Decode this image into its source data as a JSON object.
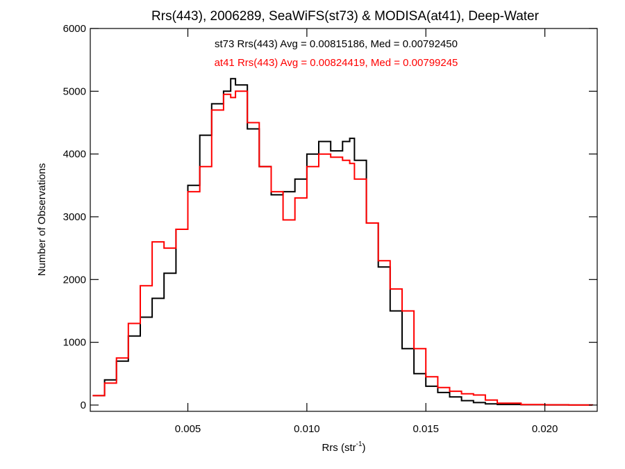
{
  "chart_data": {
    "type": "line",
    "title": "Rrs(443), 2006289, SeaWiFS(st73) & MODISA(at41), Deep-Water",
    "xlabel_main": "Rrs (str",
    "xlabel_sup": "-1",
    "xlabel_close": ")",
    "ylabel": "Number of Observations",
    "xlim": [
      0.0009,
      0.0222
    ],
    "ylim": [
      -100,
      6000
    ],
    "xticks": [
      0.005,
      0.01,
      0.015,
      0.02
    ],
    "xtick_labels": [
      "0.005",
      "0.010",
      "0.015",
      "0.020"
    ],
    "yticks": [
      0,
      1000,
      2000,
      3000,
      4000,
      5000,
      6000
    ],
    "ytick_labels": [
      "0",
      "1000",
      "2000",
      "3000",
      "4000",
      "5000",
      "6000"
    ],
    "grid": false,
    "annotations": [
      {
        "text": "st73 Rrs(443) Avg = 0.00815186, Med = 0.00792450",
        "color": "#000000"
      },
      {
        "text": "at41 Rrs(443) Avg = 0.00824419, Med = 0.00799245",
        "color": "#ff0000"
      }
    ],
    "series": [
      {
        "color": "#000000",
        "x": [
          0.001,
          0.0015,
          0.002,
          0.0025,
          0.003,
          0.0035,
          0.004,
          0.0045,
          0.005,
          0.0055,
          0.006,
          0.0065,
          0.0068,
          0.007,
          0.0075,
          0.008,
          0.0085,
          0.009,
          0.0095,
          0.01,
          0.0105,
          0.011,
          0.0115,
          0.0118,
          0.012,
          0.0125,
          0.013,
          0.0135,
          0.014,
          0.0145,
          0.015,
          0.0155,
          0.016,
          0.0165,
          0.017,
          0.0175,
          0.018,
          0.019,
          0.02,
          0.021,
          0.022
        ],
        "y": [
          150,
          400,
          700,
          1100,
          1400,
          1700,
          2100,
          2800,
          3500,
          4300,
          4800,
          5000,
          5200,
          5100,
          4400,
          3800,
          3350,
          3400,
          3600,
          4000,
          4200,
          4050,
          4200,
          4250,
          3900,
          2900,
          2200,
          1500,
          900,
          500,
          300,
          200,
          130,
          70,
          40,
          20,
          10,
          5,
          3,
          1,
          0
        ]
      },
      {
        "color": "#ff0000",
        "x": [
          0.001,
          0.0015,
          0.002,
          0.0025,
          0.003,
          0.0035,
          0.004,
          0.0045,
          0.005,
          0.0055,
          0.006,
          0.0065,
          0.0068,
          0.007,
          0.0075,
          0.008,
          0.0085,
          0.009,
          0.0095,
          0.01,
          0.0105,
          0.011,
          0.0115,
          0.0118,
          0.012,
          0.0125,
          0.013,
          0.0135,
          0.014,
          0.0145,
          0.015,
          0.0155,
          0.016,
          0.0165,
          0.017,
          0.0175,
          0.018,
          0.019,
          0.02,
          0.021,
          0.022
        ],
        "y": [
          150,
          350,
          750,
          1300,
          1900,
          2600,
          2500,
          2800,
          3400,
          3800,
          4700,
          4950,
          4900,
          5000,
          4500,
          3800,
          3400,
          2950,
          3300,
          3800,
          4000,
          3950,
          3900,
          3850,
          3600,
          2900,
          2300,
          1850,
          1500,
          900,
          450,
          280,
          220,
          180,
          160,
          80,
          30,
          8,
          4,
          1,
          0
        ]
      }
    ]
  }
}
